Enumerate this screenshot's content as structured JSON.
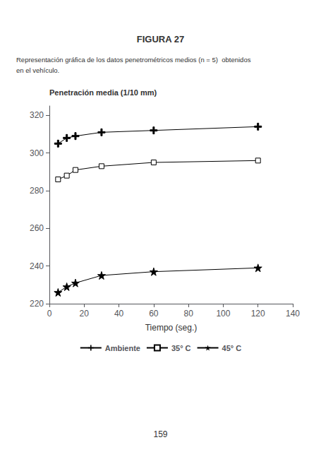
{
  "chart_data": {
    "type": "line",
    "title": "FIGURA 27",
    "subtitle": [
      "Representación gráfica de los datos penetrométricos medios (n = 5)  obtenidos",
      "en el vehículo."
    ],
    "annotations": [
      "159"
    ],
    "xlabel": "Tiempo (seg.)",
    "ylabel": "Penetración media (1/10 mm)",
    "x": [
      5,
      10,
      15,
      30,
      60,
      120
    ],
    "xlim": [
      0,
      140
    ],
    "xticks": [
      0,
      20,
      40,
      60,
      80,
      100,
      120,
      140
    ],
    "ylim": [
      220,
      325
    ],
    "yticks": [
      220,
      240,
      260,
      280,
      300,
      320
    ],
    "grid": false,
    "legend": "bottom",
    "series": [
      {
        "name": "Ambiente",
        "color": "#000000",
        "marker": "plus",
        "values": [
          305,
          308,
          309,
          311,
          312,
          314
        ]
      },
      {
        "name": "35° C",
        "color": "#000000",
        "marker": "square",
        "values": [
          286,
          288,
          291,
          293,
          295,
          296
        ]
      },
      {
        "name": "45° C",
        "color": "#000000",
        "marker": "star",
        "values": [
          226,
          229,
          231,
          235,
          237,
          239
        ]
      }
    ]
  }
}
